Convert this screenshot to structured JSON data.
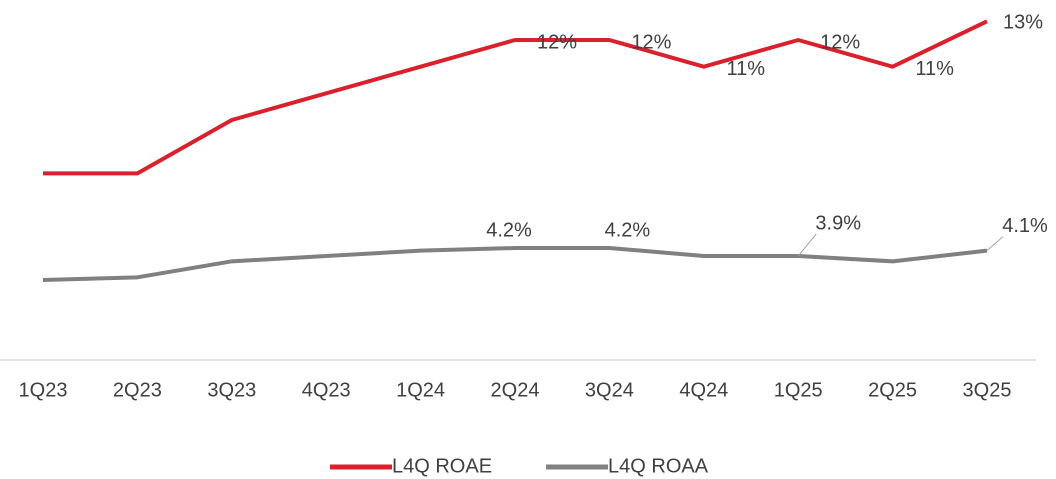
{
  "chart_data": {
    "type": "line",
    "categories": [
      "1Q23",
      "2Q23",
      "3Q23",
      "4Q23",
      "1Q24",
      "2Q24",
      "3Q24",
      "4Q24",
      "1Q25",
      "2Q25",
      "3Q25"
    ],
    "series": [
      {
        "name": "L4Q ROAE",
        "color": "#d9202c",
        "values": [
          7.0,
          7.0,
          9.0,
          10.0,
          11.0,
          12.0,
          12.0,
          11.0,
          12.0,
          11.0,
          12.7
        ],
        "value_labels": [
          null,
          null,
          null,
          null,
          null,
          "12%",
          "12%",
          "11%",
          "12%",
          "11%",
          "13%"
        ]
      },
      {
        "name": "L4Q ROAA",
        "color": "#808080",
        "values": [
          3.0,
          3.1,
          3.7,
          3.9,
          4.1,
          4.2,
          4.2,
          3.9,
          3.9,
          3.7,
          4.1
        ],
        "value_labels": [
          null,
          null,
          null,
          null,
          null,
          "4.2%",
          "4.2%",
          null,
          "3.9%",
          null,
          "4.1%"
        ]
      }
    ],
    "ylim": [
      0,
      13.5
    ],
    "legend": "bottom"
  }
}
